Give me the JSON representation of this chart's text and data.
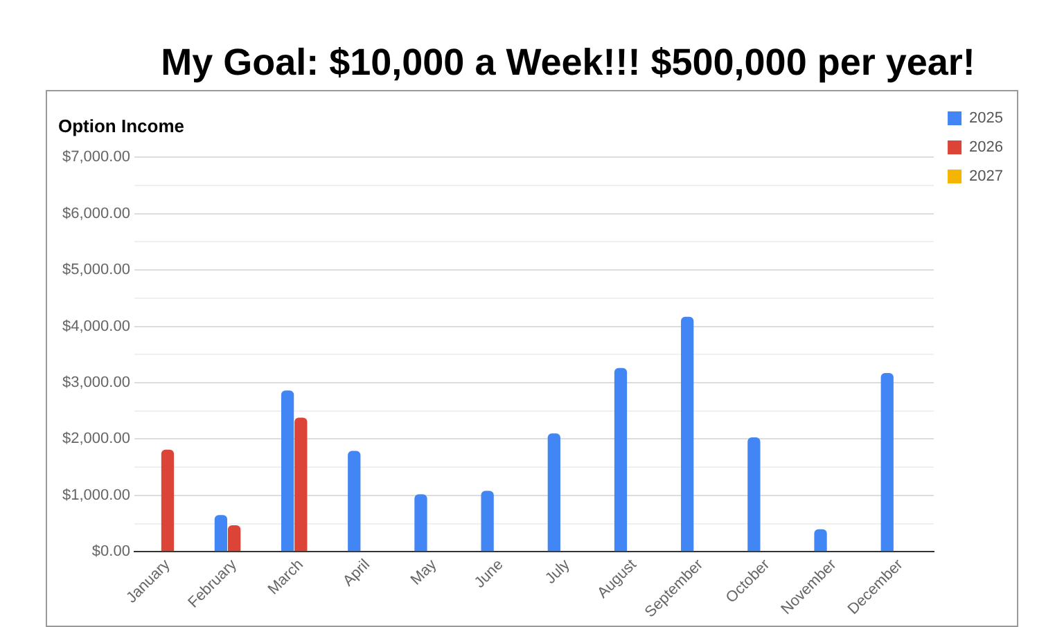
{
  "chart_data": {
    "type": "bar",
    "title": "My Goal:  $10,000 a Week!!! $500,000 per year!",
    "subtitle": "Option Income",
    "categories": [
      "January",
      "February",
      "March",
      "April",
      "May",
      "June",
      "July",
      "August",
      "September",
      "October",
      "November",
      "December"
    ],
    "series": [
      {
        "name": "2025",
        "color": "#4285f4",
        "values": [
          0,
          650,
          2860,
          1790,
          1020,
          1080,
          2100,
          3260,
          4170,
          2030,
          400,
          3170
        ]
      },
      {
        "name": "2026",
        "color": "#db4437",
        "values": [
          1810,
          470,
          2380,
          0,
          0,
          0,
          0,
          0,
          0,
          0,
          0,
          0
        ]
      },
      {
        "name": "2027",
        "color": "#f4b400",
        "values": [
          0,
          0,
          0,
          0,
          0,
          0,
          0,
          0,
          0,
          0,
          0,
          0
        ]
      }
    ],
    "ylim": [
      0,
      7000
    ],
    "yticks": [
      {
        "value": 0,
        "label": "$0.00"
      },
      {
        "value": 500,
        "label": null
      },
      {
        "value": 1000,
        "label": "$1,000.00"
      },
      {
        "value": 1500,
        "label": null
      },
      {
        "value": 2000,
        "label": "$2,000.00"
      },
      {
        "value": 2500,
        "label": null
      },
      {
        "value": 3000,
        "label": "$3,000.00"
      },
      {
        "value": 3500,
        "label": null
      },
      {
        "value": 4000,
        "label": "$4,000.00"
      },
      {
        "value": 4500,
        "label": null
      },
      {
        "value": 5000,
        "label": "$5,000.00"
      },
      {
        "value": 5500,
        "label": null
      },
      {
        "value": 6000,
        "label": "$6,000.00"
      },
      {
        "value": 6500,
        "label": null
      },
      {
        "value": 7000,
        "label": "$7,000.00"
      }
    ],
    "grid": "y",
    "legend": "right"
  }
}
